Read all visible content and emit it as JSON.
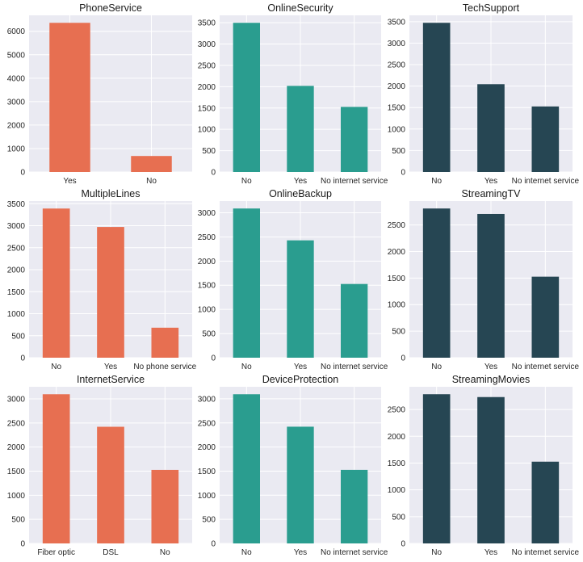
{
  "colors": {
    "background": "#ffffff",
    "plot_area": "#eaeaf2",
    "grid": "#ffffff",
    "orange": "#e76f51",
    "teal": "#2a9d8f",
    "navy": "#264653"
  },
  "chart_data": [
    {
      "type": "bar",
      "title": "PhoneService",
      "color": "orange",
      "categories": [
        "Yes",
        "No"
      ],
      "values": [
        6361,
        682
      ],
      "yticks": [
        0,
        1000,
        2000,
        3000,
        4000,
        5000,
        6000
      ],
      "ylim": [
        0,
        6680
      ]
    },
    {
      "type": "bar",
      "title": "OnlineSecurity",
      "color": "teal",
      "categories": [
        "No",
        "Yes",
        "No internet service"
      ],
      "values": [
        3498,
        2019,
        1526
      ],
      "yticks": [
        0,
        500,
        1000,
        1500,
        2000,
        2500,
        3000,
        3500
      ],
      "ylim": [
        0,
        3673
      ]
    },
    {
      "type": "bar",
      "title": "TechSupport",
      "color": "navy",
      "categories": [
        "No",
        "Yes",
        "No internet service"
      ],
      "values": [
        3473,
        2044,
        1526
      ],
      "yticks": [
        0,
        500,
        1000,
        1500,
        2000,
        2500,
        3000,
        3500
      ],
      "ylim": [
        0,
        3647
      ]
    },
    {
      "type": "bar",
      "title": "MultipleLines",
      "color": "orange",
      "categories": [
        "No",
        "Yes",
        "No phone service"
      ],
      "values": [
        3390,
        2971,
        682
      ],
      "yticks": [
        0,
        500,
        1000,
        1500,
        2000,
        2500,
        3000,
        3500
      ],
      "ylim": [
        0,
        3560
      ]
    },
    {
      "type": "bar",
      "title": "OnlineBackup",
      "color": "teal",
      "categories": [
        "No",
        "Yes",
        "No internet service"
      ],
      "values": [
        3088,
        2429,
        1526
      ],
      "yticks": [
        0,
        500,
        1000,
        1500,
        2000,
        2500,
        3000
      ],
      "ylim": [
        0,
        3242
      ]
    },
    {
      "type": "bar",
      "title": "StreamingTV",
      "color": "navy",
      "categories": [
        "No",
        "Yes",
        "No internet service"
      ],
      "values": [
        2810,
        2707,
        1526
      ],
      "yticks": [
        0,
        500,
        1000,
        1500,
        2000,
        2500
      ],
      "ylim": [
        0,
        2950
      ]
    },
    {
      "type": "bar",
      "title": "InternetService",
      "color": "orange",
      "categories": [
        "Fiber optic",
        "DSL",
        "No"
      ],
      "values": [
        3096,
        2421,
        1526
      ],
      "yticks": [
        0,
        500,
        1000,
        1500,
        2000,
        2500,
        3000
      ],
      "ylim": [
        0,
        3251
      ]
    },
    {
      "type": "bar",
      "title": "DeviceProtection",
      "color": "teal",
      "categories": [
        "No",
        "Yes",
        "No internet service"
      ],
      "values": [
        3095,
        2422,
        1526
      ],
      "yticks": [
        0,
        500,
        1000,
        1500,
        2000,
        2500,
        3000
      ],
      "ylim": [
        0,
        3250
      ]
    },
    {
      "type": "bar",
      "title": "StreamingMovies",
      "color": "navy",
      "categories": [
        "No",
        "Yes",
        "No internet service"
      ],
      "values": [
        2785,
        2732,
        1526
      ],
      "yticks": [
        0,
        500,
        1000,
        1500,
        2000,
        2500
      ],
      "ylim": [
        0,
        2924
      ]
    }
  ]
}
